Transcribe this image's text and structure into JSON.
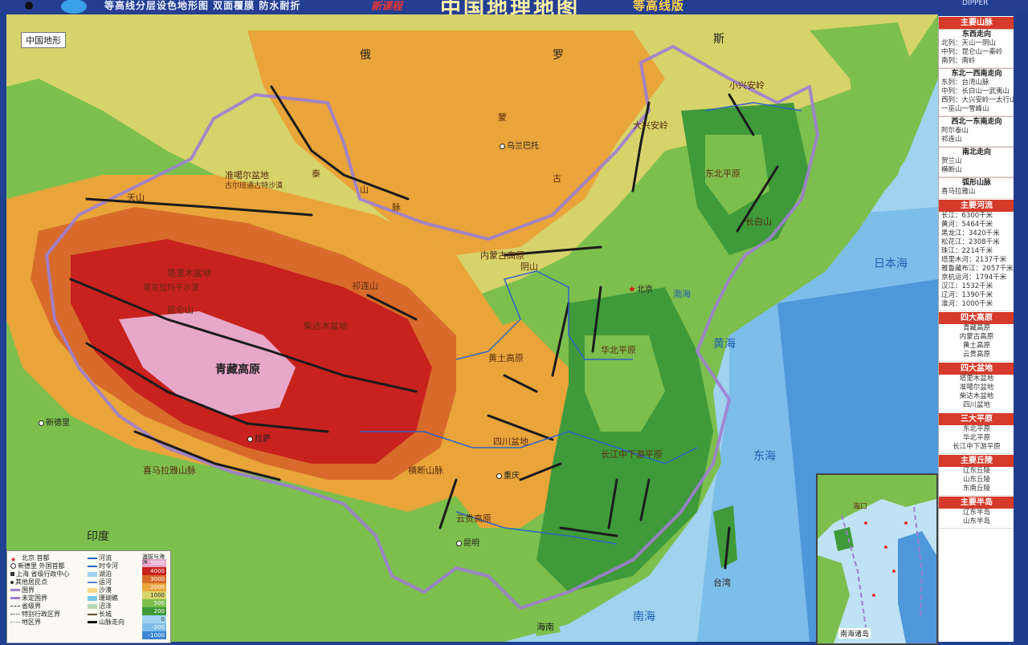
{
  "header": {
    "slogan": "等高线分层设色地形图   双面覆膜   防水耐折",
    "badge": "新课程",
    "title": "中国地理地图",
    "edition": "等高线版",
    "brand": "DIPPER"
  },
  "map": {
    "caption": "中国地形",
    "colors": {
      "ocean_deep": "#3d86d3",
      "ocean_shallow": "#9fd3ef",
      "lowland": "#3f9a3a",
      "plain": "#7dbf4d",
      "hill": "#d6d36a",
      "plateau": "#e9a43a",
      "mountain": "#d86b2b",
      "high": "#c7221d",
      "peak": "#e7a7c8",
      "border": "#9d7fd1"
    },
    "labels": {
      "mongolia_mid": "蒙",
      "gu": "古",
      "ulaanbaatar": "乌兰巴托",
      "altai": "泰",
      "shan": "山",
      "mai": "脉",
      "tarim": "塔里木盆地",
      "taklimakan": "塔克拉玛干沙漠",
      "qinghai_tibet": "青藏高原",
      "junggar": "准噶尔盆地",
      "gurbantunggut": "古尔班通古特沙漠",
      "inner_mongolia_plateau": "内蒙古高原",
      "yinshan": "阴山",
      "loess": "黄土高原",
      "sichuan": "四川盆地",
      "yunnan": "云贵高原",
      "northeast_plain": "东北平原",
      "north_china_plain": "华北平原",
      "yangtze_plain": "长江中下游平原",
      "xiaoxinganling": "小兴安岭",
      "daxinganling": "大兴安岭",
      "changbai": "长白山",
      "yellow_sea": "黄海",
      "east_sea": "东海",
      "bohai": "渤海",
      "japan_sea": "日本海",
      "south_sea": "南海",
      "new_delhi": "新德里",
      "beijing": "北京",
      "chongqing": "重庆",
      "kunming": "昆明",
      "lhasa": "拉萨",
      "taiwan": "台湾",
      "hainan": "海南",
      "india": "印度",
      "russia_1": "俄",
      "russia_2": "罗",
      "russia_3": "斯",
      "qilian": "祁连山",
      "kunlun": "昆仑山",
      "tianshan": "天山",
      "himalaya": "喜马拉雅山脉",
      "qaidam": "柴达木盆地",
      "hengduan": "横断山脉"
    }
  },
  "legend": {
    "col1": [
      "北京  首都",
      "新德里  外国首都",
      "上海  省级行政中心",
      "其他居民点",
      "国界",
      "未定国界",
      "省级界",
      "特别行政区界",
      "地区界"
    ],
    "col2": [
      "河流",
      "时令河",
      "湖泊",
      "运河",
      "沙漠",
      "珊瑚礁",
      "沼泽",
      "长城",
      "山脉走向"
    ],
    "ramp_title": "海拔与海深",
    "ramp": [
      "5000",
      "4000",
      "3000",
      "2000",
      "1000",
      "500",
      "200",
      "0",
      "-200",
      "-1000"
    ]
  },
  "inset": {
    "title": "南海诸岛",
    "label": "海口"
  },
  "sidebar": {
    "sections": [
      {
        "title": "主要山脉",
        "groups": [
          {
            "sub": "东西走向",
            "lines": [
              "北列：天山一阴山",
              "中列：昆仑山一秦岭",
              "南列：南岭"
            ]
          },
          {
            "sub": "东北一西南走向",
            "lines": [
              "东列：台湾山脉",
              "中列：长白山一武夷山",
              "西列：大兴安岭一太行山",
              "一巫山一雪峰山"
            ]
          },
          {
            "sub": "西北一东南走向",
            "lines": [
              "阿尔泰山",
              "祁连山"
            ]
          },
          {
            "sub": "南北走向",
            "lines": [
              "贺兰山",
              "横断山"
            ]
          },
          {
            "sub": "弧形山脉",
            "lines": [
              "喜马拉雅山"
            ]
          }
        ]
      },
      {
        "title": "主要河流",
        "groups": [
          {
            "sub": "",
            "lines": [
              "长江：6300千米",
              "黄河：5464千米",
              "黑龙江：3420千米",
              "松花江：2308千米",
              "珠江：2214千米",
              "塔里木河：2137千米",
              "雅鲁藏布江：2057千米",
              "京杭运河：1794千米",
              "汉江：1532千米",
              "辽河：1390千米",
              "淮河：1000千米"
            ]
          }
        ]
      },
      {
        "title": "四大高原",
        "groups": [
          {
            "sub": "",
            "lines": [
              "青藏高原",
              "内蒙古高原",
              "黄土高原",
              "云贵高原"
            ]
          }
        ]
      },
      {
        "title": "四大盆地",
        "groups": [
          {
            "sub": "",
            "lines": [
              "塔里木盆地",
              "准噶尔盆地",
              "柴达木盆地",
              "四川盆地"
            ]
          }
        ]
      },
      {
        "title": "三大平原",
        "groups": [
          {
            "sub": "",
            "lines": [
              "东北平原",
              "华北平原",
              "长江中下游平原"
            ]
          }
        ]
      },
      {
        "title": "主要丘陵",
        "groups": [
          {
            "sub": "",
            "lines": [
              "辽东丘陵",
              "山东丘陵",
              "东南丘陵"
            ]
          }
        ]
      },
      {
        "title": "主要半岛",
        "groups": [
          {
            "sub": "",
            "lines": [
              "辽东半岛",
              "山东半岛"
            ]
          }
        ]
      }
    ]
  }
}
